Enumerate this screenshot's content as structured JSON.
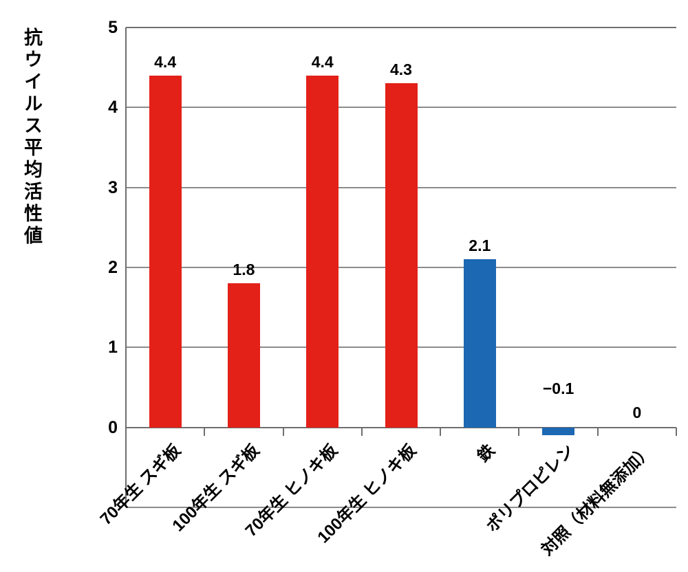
{
  "chart_data": {
    "type": "bar",
    "title": "",
    "ylabel": "抗ウイルス平均活性値",
    "xlabel": "",
    "categories": [
      "70年生 スギ板",
      "100年生 スギ板",
      "70年生 ヒノキ板",
      "100年生 ヒノキ板",
      "鉄",
      "ポリプロピレン",
      "対照（材料無添加）"
    ],
    "values": [
      4.4,
      1.8,
      4.4,
      4.3,
      2.1,
      -0.1,
      0
    ],
    "value_labels": [
      "4.4",
      "1.8",
      "4.4",
      "4.3",
      "2.1",
      "−0.1",
      "0"
    ],
    "bar_colors": [
      "#e32119",
      "#e32119",
      "#e32119",
      "#e32119",
      "#1c68b3",
      "#1c68b3",
      "#1c68b3"
    ],
    "y_ticks": [
      0,
      1,
      2,
      3,
      4,
      5
    ],
    "y_tick_labels": [
      "0",
      "1",
      "2",
      "3",
      "4",
      "5"
    ],
    "ylim": [
      -1,
      5
    ],
    "grid": true,
    "legend": "none",
    "colors": {
      "red_bar": "#e32119",
      "blue_bar": "#1c68b3",
      "gridline": "#8c8c8c",
      "axis": "#6e6e6e",
      "text": "#000000",
      "background": "#ffffff"
    }
  }
}
